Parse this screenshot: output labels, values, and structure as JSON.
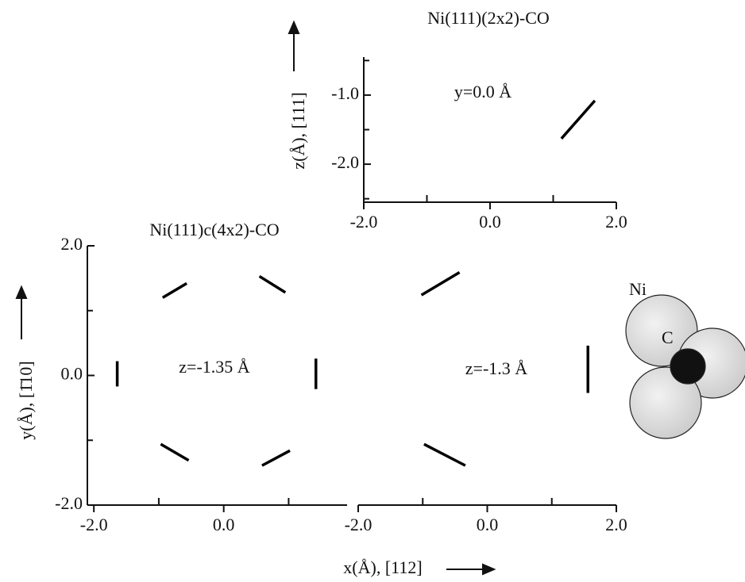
{
  "chart_data": [
    {
      "type": "line",
      "title": "Ni(111)(2x2)-CO",
      "ylabel": "z(Å), [111]",
      "annotation": "y=0.0 Å",
      "xlim": [
        -2.0,
        2.0
      ],
      "ylim": [
        -2.55,
        -0.45
      ],
      "xticks": [
        {
          "value": -2,
          "label": "-2.0"
        },
        {
          "value": 0,
          "label": "0.0"
        },
        {
          "value": 2,
          "label": "2.0"
        }
      ],
      "xminorticks": [
        -1,
        1
      ],
      "yticks": [
        {
          "value": -1,
          "label": "-1.0"
        },
        {
          "value": -2,
          "label": "-2.0"
        }
      ],
      "yminorticks": [
        -0.5,
        -1.5,
        -2.5
      ],
      "series": [
        {
          "color": "#000",
          "x": [
            1.13,
            1.66
          ],
          "y": [
            -1.63,
            -1.08
          ]
        }
      ]
    },
    {
      "type": "line",
      "title": "Ni(111)c(4x2)-CO",
      "ylabel": "y(Å), [1̄10]",
      "annotation": "z=-1.35 Å",
      "xlim": [
        -2.1,
        1.9
      ],
      "ylim": [
        -2.0,
        2.0
      ],
      "xticks": [
        {
          "value": -2,
          "label": "-2.0"
        },
        {
          "value": 0,
          "label": "0.0"
        }
      ],
      "xminorticks": [
        -1,
        1
      ],
      "yticks": [
        {
          "value": 2,
          "label": "2.0"
        },
        {
          "value": 0,
          "label": "0.0"
        },
        {
          "value": -2,
          "label": "-2.0"
        }
      ],
      "yminorticks": [
        1,
        -1
      ],
      "series": [
        {
          "color": "#000",
          "x": [
            -0.94,
            -0.57
          ],
          "y": [
            1.2,
            1.42
          ]
        },
        {
          "color": "#000",
          "x": [
            0.55,
            0.95
          ],
          "y": [
            1.53,
            1.28
          ]
        },
        {
          "color": "#000",
          "x": [
            -1.64,
            -1.64
          ],
          "y": [
            0.22,
            -0.17
          ]
        },
        {
          "color": "#000",
          "x": [
            1.42,
            1.42
          ],
          "y": [
            0.26,
            -0.21
          ]
        },
        {
          "color": "#000",
          "x": [
            -0.97,
            -0.54
          ],
          "y": [
            -1.06,
            -1.31
          ]
        },
        {
          "color": "#000",
          "x": [
            0.59,
            1.02
          ],
          "y": [
            -1.39,
            -1.16
          ]
        }
      ]
    },
    {
      "type": "line",
      "xlabel": "x(Å), [112]",
      "annotation": "z=-1.3 Å",
      "xlim": [
        -2.0,
        2.0
      ],
      "ylim": [
        -2.0,
        2.0
      ],
      "xticks": [
        {
          "value": -2,
          "label": "-2.0"
        },
        {
          "value": 0,
          "label": "0.0"
        },
        {
          "value": 2,
          "label": "2.0"
        }
      ],
      "xminorticks": [
        -1,
        1
      ],
      "series": [
        {
          "color": "#000",
          "x": [
            -1.02,
            -0.43
          ],
          "y": [
            1.24,
            1.59
          ]
        },
        {
          "color": "#000",
          "x": [
            -0.98,
            -0.34
          ],
          "y": [
            -1.06,
            -1.39
          ]
        },
        {
          "color": "#000",
          "x": [
            1.56,
            1.56
          ],
          "y": [
            0.46,
            -0.27
          ]
        }
      ]
    }
  ],
  "inset": {
    "labels": [
      "Ni",
      "C"
    ]
  }
}
